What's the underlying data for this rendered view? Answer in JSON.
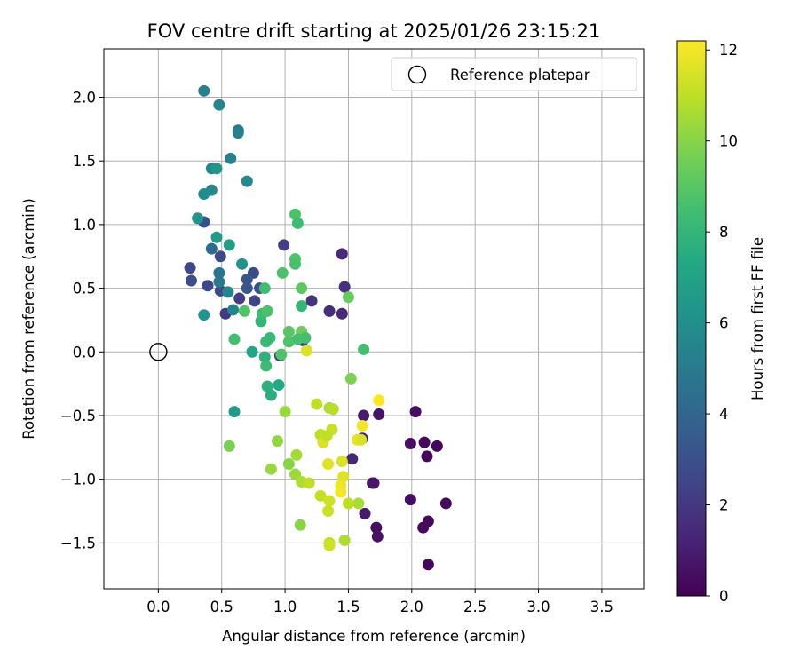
{
  "chart_data": {
    "type": "scatter",
    "title": "FOV centre drift starting at 2025/01/26 23:15:21",
    "xlabel": "Angular distance from reference (arcmin)",
    "ylabel": "Rotation from reference (arcmin)",
    "xlim": [
      -0.43,
      3.83
    ],
    "ylim": [
      -1.86,
      2.38
    ],
    "xticks": [
      0.0,
      0.5,
      1.0,
      1.5,
      2.0,
      2.5,
      3.0,
      3.5
    ],
    "yticks": [
      -1.5,
      -1.0,
      -0.5,
      0.0,
      0.5,
      1.0,
      1.5,
      2.0
    ],
    "xtick_labels": [
      "0.0",
      "0.5",
      "1.0",
      "1.5",
      "2.0",
      "2.5",
      "3.0",
      "3.5"
    ],
    "ytick_labels": [
      "−1.5",
      "−1.0",
      "−0.5",
      "0.0",
      "0.5",
      "1.0",
      "1.5",
      "2.0"
    ],
    "grid": true,
    "legend": {
      "placement": "top-right",
      "entries": [
        {
          "label": "Reference platepar",
          "marker": "open-circle",
          "x": 0.0,
          "y": 0.0
        }
      ]
    },
    "colorbar": {
      "label": "Hours from first FF file",
      "colormap": "viridis",
      "range": [
        0,
        12.2
      ],
      "ticks": [
        0,
        2,
        4,
        6,
        8,
        10,
        12
      ],
      "tick_labels": [
        "0",
        "2",
        "4",
        "6",
        "8",
        "10",
        "12"
      ]
    },
    "colors": {
      "axis": "#000000",
      "grid": "#b0b0b0",
      "reference_marker": "#000000"
    },
    "points": [
      {
        "x": 2.13,
        "y": -1.67,
        "c": 0.2
      },
      {
        "x": 2.27,
        "y": -1.19,
        "c": 0.3
      },
      {
        "x": 2.2,
        "y": -0.74,
        "c": 0.2
      },
      {
        "x": 2.12,
        "y": -0.82,
        "c": 0.2
      },
      {
        "x": 2.1,
        "y": -0.71,
        "c": 0.3
      },
      {
        "x": 2.13,
        "y": -1.33,
        "c": 0.3
      },
      {
        "x": 2.09,
        "y": -1.38,
        "c": 0.3
      },
      {
        "x": 1.99,
        "y": -0.72,
        "c": 0.5
      },
      {
        "x": 1.99,
        "y": -1.16,
        "c": 0.4
      },
      {
        "x": 2.03,
        "y": -0.47,
        "c": 0.5
      },
      {
        "x": 1.74,
        "y": -0.49,
        "c": 0.6
      },
      {
        "x": 1.72,
        "y": -1.38,
        "c": 0.4
      },
      {
        "x": 1.73,
        "y": -1.45,
        "c": 0.6
      },
      {
        "x": 1.69,
        "y": -1.03,
        "c": 0.7
      },
      {
        "x": 1.7,
        "y": -1.03,
        "c": 0.8
      },
      {
        "x": 1.63,
        "y": -1.27,
        "c": 0.9
      },
      {
        "x": 1.62,
        "y": -0.5,
        "c": 0.9
      },
      {
        "x": 1.61,
        "y": -0.68,
        "c": 1.0
      },
      {
        "x": 1.53,
        "y": -0.84,
        "c": 1.3
      },
      {
        "x": 1.45,
        "y": 0.77,
        "c": 1.4
      },
      {
        "x": 1.47,
        "y": 0.51,
        "c": 1.7
      },
      {
        "x": 1.45,
        "y": 0.3,
        "c": 1.4
      },
      {
        "x": 1.35,
        "y": 0.32,
        "c": 1.6
      },
      {
        "x": 1.21,
        "y": 0.4,
        "c": 1.8
      },
      {
        "x": 1.14,
        "y": 0.09,
        "c": 2.3
      },
      {
        "x": 0.99,
        "y": 0.84,
        "c": 2.2
      },
      {
        "x": 0.96,
        "y": -0.03,
        "c": 2.2
      },
      {
        "x": 0.76,
        "y": 0.4,
        "c": 2.5
      },
      {
        "x": 0.75,
        "y": 0.62,
        "c": 2.7
      },
      {
        "x": 0.8,
        "y": 0.5,
        "c": 3.0
      },
      {
        "x": 0.7,
        "y": 0.5,
        "c": 3.3
      },
      {
        "x": 0.7,
        "y": 0.57,
        "c": 3.2
      },
      {
        "x": 0.64,
        "y": 0.42,
        "c": 2.2
      },
      {
        "x": 0.53,
        "y": 0.3,
        "c": 2.1
      },
      {
        "x": 0.49,
        "y": 0.75,
        "c": 2.8
      },
      {
        "x": 0.49,
        "y": 0.48,
        "c": 2.8
      },
      {
        "x": 0.39,
        "y": 0.52,
        "c": 2.6
      },
      {
        "x": 0.25,
        "y": 0.66,
        "c": 2.6
      },
      {
        "x": 0.26,
        "y": 0.56,
        "c": 3.0
      },
      {
        "x": 0.36,
        "y": 1.02,
        "c": 3.0
      },
      {
        "x": 0.42,
        "y": 0.81,
        "c": 4.2
      },
      {
        "x": 0.48,
        "y": 0.55,
        "c": 5.0
      },
      {
        "x": 0.48,
        "y": 0.62,
        "c": 4.7
      },
      {
        "x": 0.55,
        "y": 0.47,
        "c": 5.5
      },
      {
        "x": 0.59,
        "y": 0.33,
        "c": 5.5
      },
      {
        "x": 0.66,
        "y": 0.69,
        "c": 6.2
      },
      {
        "x": 0.36,
        "y": 0.29,
        "c": 6.3
      },
      {
        "x": 0.36,
        "y": 2.05,
        "c": 5.2
      },
      {
        "x": 0.48,
        "y": 1.94,
        "c": 5.5
      },
      {
        "x": 0.63,
        "y": 1.74,
        "c": 4.9
      },
      {
        "x": 0.63,
        "y": 1.72,
        "c": 5.2
      },
      {
        "x": 0.57,
        "y": 1.52,
        "c": 5.3
      },
      {
        "x": 0.7,
        "y": 1.34,
        "c": 5.7
      },
      {
        "x": 0.42,
        "y": 1.44,
        "c": 5.5
      },
      {
        "x": 0.46,
        "y": 1.44,
        "c": 6.4
      },
      {
        "x": 0.42,
        "y": 1.27,
        "c": 5.7
      },
      {
        "x": 0.36,
        "y": 1.24,
        "c": 5.8
      },
      {
        "x": 0.31,
        "y": 1.05,
        "c": 6.3
      },
      {
        "x": 0.46,
        "y": 0.9,
        "c": 6.7
      },
      {
        "x": 0.56,
        "y": 0.84,
        "c": 6.8
      },
      {
        "x": 0.6,
        "y": -0.47,
        "c": 6.6
      },
      {
        "x": 0.74,
        "y": 0.0,
        "c": 7.2
      },
      {
        "x": 0.6,
        "y": 0.1,
        "c": 8.5
      },
      {
        "x": 0.68,
        "y": 0.32,
        "c": 8.8
      },
      {
        "x": 0.81,
        "y": 0.24,
        "c": 8.0
      },
      {
        "x": 0.84,
        "y": 0.5,
        "c": 8.4
      },
      {
        "x": 0.82,
        "y": 0.3,
        "c": 8.3
      },
      {
        "x": 0.86,
        "y": 0.32,
        "c": 8.7
      },
      {
        "x": 0.84,
        "y": -0.04,
        "c": 7.8
      },
      {
        "x": 0.85,
        "y": -0.11,
        "c": 8.3
      },
      {
        "x": 0.85,
        "y": 0.08,
        "c": 8.2
      },
      {
        "x": 0.88,
        "y": 0.11,
        "c": 8.1
      },
      {
        "x": 0.86,
        "y": -0.27,
        "c": 7.7
      },
      {
        "x": 0.89,
        "y": -0.34,
        "c": 7.6
      },
      {
        "x": 0.95,
        "y": -0.26,
        "c": 7.3
      },
      {
        "x": 0.97,
        "y": -0.02,
        "c": 8.8
      },
      {
        "x": 0.98,
        "y": 0.62,
        "c": 8.7
      },
      {
        "x": 1.03,
        "y": 0.08,
        "c": 8.8
      },
      {
        "x": 1.03,
        "y": 0.16,
        "c": 9.0
      },
      {
        "x": 1.08,
        "y": 0.73,
        "c": 8.8
      },
      {
        "x": 1.08,
        "y": 0.69,
        "c": 8.6
      },
      {
        "x": 1.08,
        "y": 1.08,
        "c": 8.7
      },
      {
        "x": 1.1,
        "y": 1.01,
        "c": 8.3
      },
      {
        "x": 1.13,
        "y": 0.36,
        "c": 8.0
      },
      {
        "x": 1.13,
        "y": 0.5,
        "c": 9.1
      },
      {
        "x": 1.13,
        "y": 0.16,
        "c": 9.5
      },
      {
        "x": 1.16,
        "y": 0.11,
        "c": 8.5
      },
      {
        "x": 1.1,
        "y": 0.1,
        "c": 8.6
      },
      {
        "x": 1.5,
        "y": 0.43,
        "c": 9.3
      },
      {
        "x": 1.62,
        "y": 0.02,
        "c": 8.5
      },
      {
        "x": 1.52,
        "y": -0.21,
        "c": 9.8
      },
      {
        "x": 1.17,
        "y": 0.01,
        "c": 11.5
      },
      {
        "x": 1.0,
        "y": -0.47,
        "c": 10.3
      },
      {
        "x": 0.56,
        "y": -0.74,
        "c": 9.7
      },
      {
        "x": 0.94,
        "y": -0.7,
        "c": 10.2
      },
      {
        "x": 0.89,
        "y": -0.92,
        "c": 10.3
      },
      {
        "x": 1.03,
        "y": -0.88,
        "c": 10.0
      },
      {
        "x": 1.09,
        "y": -0.81,
        "c": 10.5
      },
      {
        "x": 1.08,
        "y": -0.96,
        "c": 10.4
      },
      {
        "x": 1.13,
        "y": -1.02,
        "c": 10.7
      },
      {
        "x": 1.19,
        "y": -1.03,
        "c": 11.0
      },
      {
        "x": 1.12,
        "y": -1.36,
        "c": 10.0
      },
      {
        "x": 1.25,
        "y": -0.41,
        "c": 11.0
      },
      {
        "x": 1.28,
        "y": -0.65,
        "c": 11.0
      },
      {
        "x": 1.3,
        "y": -0.71,
        "c": 11.5
      },
      {
        "x": 1.28,
        "y": -1.13,
        "c": 11.1
      },
      {
        "x": 1.35,
        "y": -0.44,
        "c": 10.7
      },
      {
        "x": 1.38,
        "y": -0.45,
        "c": 10.9
      },
      {
        "x": 1.37,
        "y": -0.61,
        "c": 11.2
      },
      {
        "x": 1.33,
        "y": -0.66,
        "c": 11.0
      },
      {
        "x": 1.34,
        "y": -0.88,
        "c": 11.6
      },
      {
        "x": 1.35,
        "y": -1.17,
        "c": 11.3
      },
      {
        "x": 1.34,
        "y": -1.25,
        "c": 11.2
      },
      {
        "x": 1.35,
        "y": -1.5,
        "c": 11.0
      },
      {
        "x": 1.35,
        "y": -1.52,
        "c": 11.3
      },
      {
        "x": 1.45,
        "y": -0.86,
        "c": 11.5
      },
      {
        "x": 1.46,
        "y": -0.98,
        "c": 11.6
      },
      {
        "x": 1.44,
        "y": -1.05,
        "c": 11.9
      },
      {
        "x": 1.44,
        "y": -1.1,
        "c": 12.0
      },
      {
        "x": 1.47,
        "y": -1.48,
        "c": 10.7
      },
      {
        "x": 1.5,
        "y": -1.19,
        "c": 11.0
      },
      {
        "x": 1.58,
        "y": -1.19,
        "c": 10.6
      },
      {
        "x": 1.57,
        "y": -0.69,
        "c": 11.8
      },
      {
        "x": 1.6,
        "y": -0.69,
        "c": 11.5
      },
      {
        "x": 1.61,
        "y": -0.58,
        "c": 12.0
      },
      {
        "x": 1.74,
        "y": -0.38,
        "c": 12.2
      }
    ]
  }
}
